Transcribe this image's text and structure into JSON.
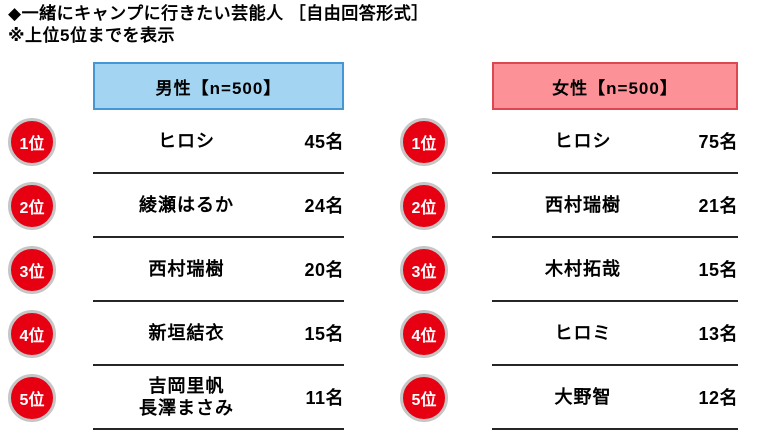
{
  "title": "◆一緒にキャンプに行きたい芸能人 ［自由回答形式］",
  "subtitle": "※上位5位までを表示",
  "groups": [
    {
      "header": "男性【n=500】",
      "rows": [
        {
          "rank": "1位",
          "name": "ヒロシ",
          "count": "45名"
        },
        {
          "rank": "2位",
          "name": "綾瀬はるか",
          "count": "24名"
        },
        {
          "rank": "3位",
          "name": "西村瑞樹",
          "count": "20名"
        },
        {
          "rank": "4位",
          "name": "新垣結衣",
          "count": "15名"
        },
        {
          "rank": "5位",
          "name": "吉岡里帆\n長澤まさみ",
          "count": "11名"
        }
      ]
    },
    {
      "header": "女性【n=500】",
      "rows": [
        {
          "rank": "1位",
          "name": "ヒロシ",
          "count": "75名"
        },
        {
          "rank": "2位",
          "name": "西村瑞樹",
          "count": "21名"
        },
        {
          "rank": "3位",
          "name": "木村拓哉",
          "count": "15名"
        },
        {
          "rank": "4位",
          "name": "ヒロミ",
          "count": "13名"
        },
        {
          "rank": "5位",
          "name": "大野智",
          "count": "12名"
        }
      ]
    }
  ],
  "colors": {
    "badge_red": "#e60012",
    "badge_ring": "#c6c6c6",
    "male_header_bg": "#a3d5f2",
    "male_header_border": "#4496d4",
    "female_header_bg": "#fc9298",
    "female_header_border": "#dd4850",
    "row_line": "#262626"
  },
  "chart_data": [
    {
      "type": "table",
      "title": "男性【n=500】",
      "rows": [
        [
          "1位",
          "ヒロシ",
          45
        ],
        [
          "2位",
          "綾瀬はるか",
          24
        ],
        [
          "3位",
          "西村瑞樹",
          20
        ],
        [
          "4位",
          "新垣結衣",
          15
        ],
        [
          "5位",
          "吉岡里帆／長澤まさみ",
          11
        ]
      ],
      "value_unit": "名"
    },
    {
      "type": "table",
      "title": "女性【n=500】",
      "rows": [
        [
          "1位",
          "ヒロシ",
          75
        ],
        [
          "2位",
          "西村瑞樹",
          21
        ],
        [
          "3位",
          "木村拓哉",
          15
        ],
        [
          "4位",
          "ヒロミ",
          13
        ],
        [
          "5位",
          "大野智",
          12
        ]
      ],
      "value_unit": "名"
    }
  ]
}
